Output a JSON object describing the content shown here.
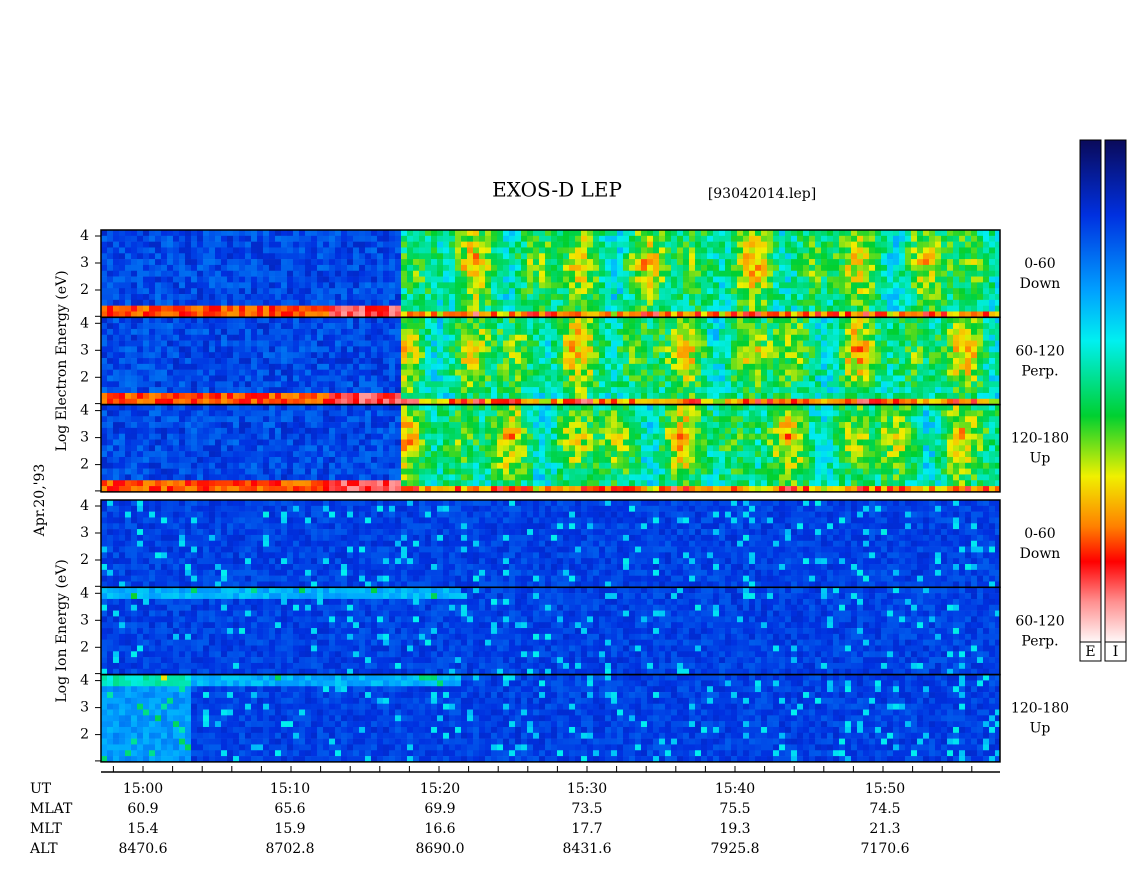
{
  "header": {
    "title": "EXOS-D LEP",
    "file": "[93042014.lep]"
  },
  "date": "Apr.20,'93",
  "groups": [
    {
      "label": "Log Electron Energy (eV)",
      "panels": [
        {
          "angle": "0-60",
          "direction": "Down",
          "yticks": [
            "2",
            "3",
            "4"
          ]
        },
        {
          "angle": "60-120",
          "direction": "Perp.",
          "yticks": [
            "2",
            "3",
            "4"
          ]
        },
        {
          "angle": "120-180",
          "direction": "Up",
          "yticks": [
            "2",
            "3",
            "4"
          ]
        }
      ]
    },
    {
      "label": "Log Ion Energy (eV)",
      "panels": [
        {
          "angle": "0-60",
          "direction": "Down",
          "yticks": [
            "2",
            "3",
            "4"
          ]
        },
        {
          "angle": "60-120",
          "direction": "Perp.",
          "yticks": [
            "2",
            "3",
            "4"
          ]
        },
        {
          "angle": "120-180",
          "direction": "Up",
          "yticks": [
            "2",
            "3",
            "4"
          ]
        }
      ]
    }
  ],
  "time_axis": {
    "rows": [
      {
        "name": "UT",
        "values": [
          "15:00",
          "15:10",
          "15:20",
          "15:30",
          "15:40",
          "15:50"
        ]
      },
      {
        "name": "MLAT",
        "values": [
          "60.9",
          "65.6",
          "69.9",
          "73.5",
          "75.5",
          "74.5"
        ]
      },
      {
        "name": "MLT",
        "values": [
          "15.4",
          "15.9",
          "16.6",
          "17.7",
          "19.3",
          "21.3"
        ]
      },
      {
        "name": "ALT",
        "values": [
          "8470.6",
          "8702.8",
          "8690.0",
          "8431.6",
          "7925.8",
          "7170.6"
        ]
      }
    ]
  },
  "color_bars": [
    {
      "label": "E"
    },
    {
      "label": "I"
    }
  ]
}
